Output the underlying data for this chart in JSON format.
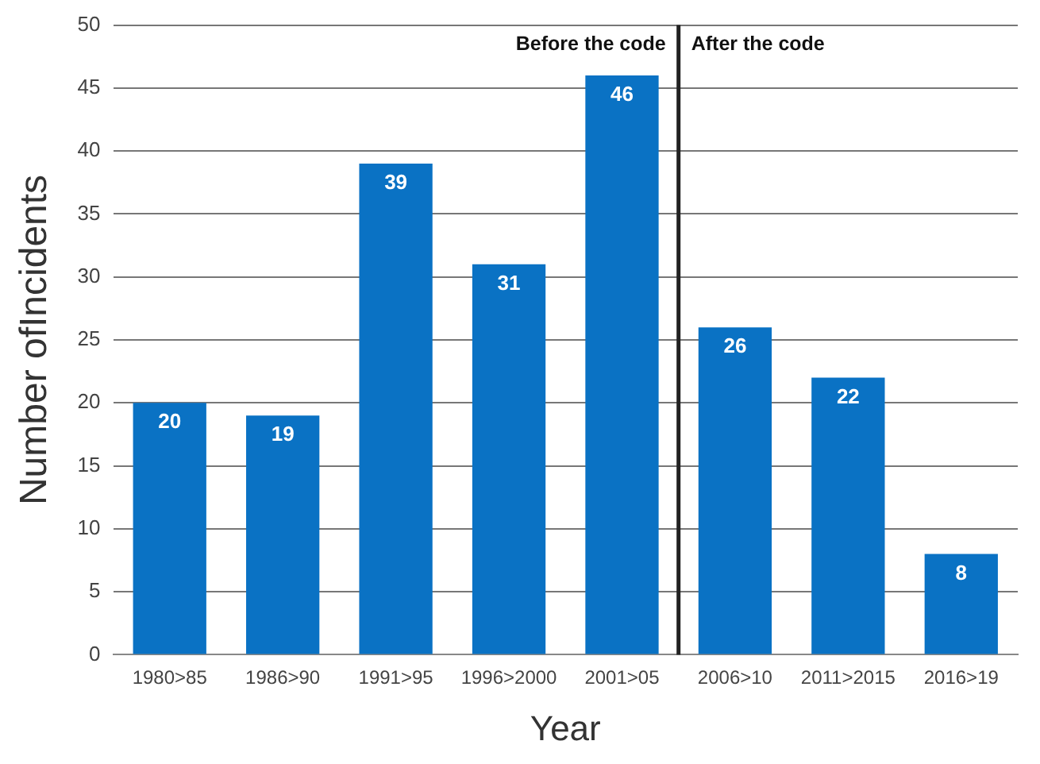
{
  "chart_data": {
    "type": "bar",
    "xlabel": "Year",
    "ylabel": "Number ofIncidents",
    "categories": [
      "1980>85",
      "1986>90",
      "1991>95",
      "1996>2000",
      "2001>05",
      "2006>10",
      "2011>2015",
      "2016>19"
    ],
    "values": [
      20,
      19,
      39,
      31,
      46,
      26,
      22,
      8
    ],
    "color": "#0a72c4",
    "ylim": [
      0,
      50
    ],
    "yticks": [
      0,
      5,
      10,
      15,
      20,
      25,
      30,
      35,
      40,
      45,
      50
    ],
    "grid": "y",
    "data_labels": true,
    "ref_lines": [
      {
        "axis": "x",
        "value": "2006>10",
        "color": "#222222"
      }
    ],
    "annotations": [
      "Before the code",
      "After the code"
    ]
  }
}
